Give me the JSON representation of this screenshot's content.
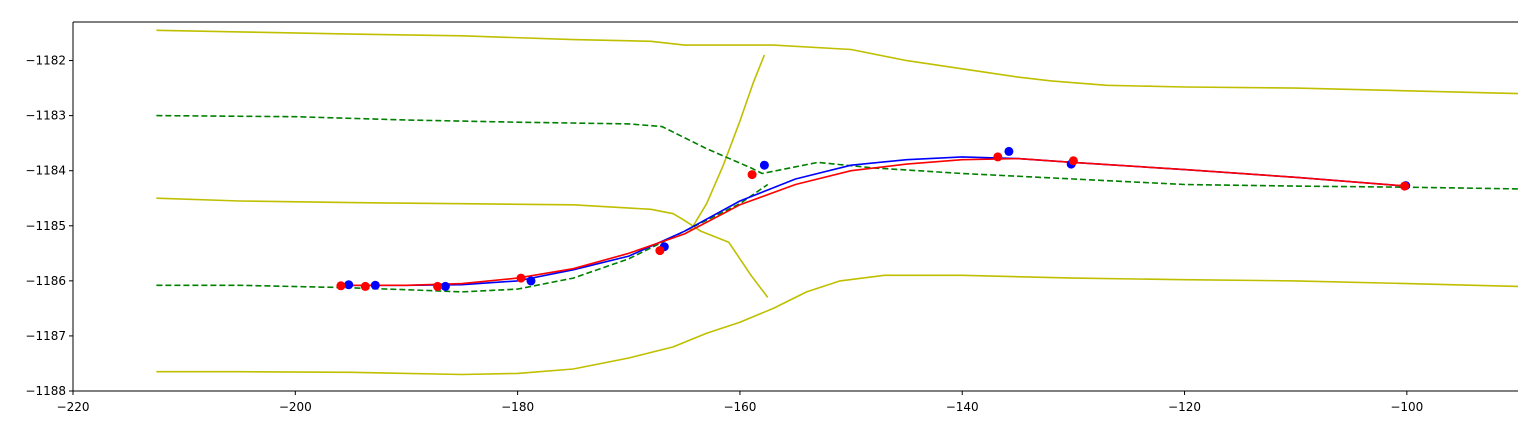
{
  "chart_data": {
    "type": "line",
    "title": "",
    "xlabel": "",
    "ylabel": "",
    "xlim": [
      -220,
      -90
    ],
    "ylim": [
      -1188,
      -1181.3
    ],
    "x_ticks": [
      "−220",
      "−200",
      "−180",
      "−160",
      "−140",
      "−120",
      "−100"
    ],
    "y_ticks": [
      "−1188",
      "−1187",
      "−1186",
      "−1185",
      "−1184",
      "−1183",
      "−1182"
    ],
    "grid": false,
    "legend": "none",
    "series": [
      {
        "color": "#bfbf00",
        "style": "solid",
        "x": [
          -212.5,
          -205,
          -195,
          -185,
          -175,
          -168,
          -165,
          -157,
          -150,
          -145,
          -140,
          -135,
          -132,
          -127,
          -120,
          -110,
          -100,
          -90
        ],
        "y": [
          -1181.45,
          -1181.48,
          -1181.52,
          -1181.55,
          -1181.62,
          -1181.65,
          -1181.72,
          -1181.72,
          -1181.8,
          -1182.0,
          -1182.15,
          -1182.3,
          -1182.37,
          -1182.45,
          -1182.48,
          -1182.5,
          -1182.55,
          -1182.6
        ]
      },
      {
        "color": "#bfbf00",
        "style": "solid",
        "x": [
          -212.5,
          -205,
          -195,
          -185,
          -175,
          -168,
          -166,
          -165,
          -163.5,
          -161,
          -159,
          -157.5
        ],
        "y": [
          -1184.5,
          -1184.55,
          -1184.58,
          -1184.6,
          -1184.62,
          -1184.7,
          -1184.78,
          -1184.9,
          -1185.1,
          -1185.3,
          -1185.9,
          -1186.3
        ]
      },
      {
        "color": "#bfbf00",
        "style": "solid",
        "x": [
          -212.5,
          -205,
          -195,
          -185,
          -180,
          -175,
          -170,
          -166,
          -163,
          -160,
          -157,
          -154,
          -151,
          -147,
          -140,
          -130,
          -120,
          -110,
          -100,
          -90
        ],
        "y": [
          -1187.65,
          -1187.65,
          -1187.66,
          -1187.7,
          -1187.68,
          -1187.6,
          -1187.4,
          -1187.2,
          -1186.95,
          -1186.75,
          -1186.5,
          -1186.2,
          -1186.0,
          -1185.9,
          -1185.9,
          -1185.95,
          -1185.98,
          -1186.0,
          -1186.05,
          -1186.1
        ]
      },
      {
        "color": "#bfbf00",
        "style": "solid",
        "x": [
          -164.5,
          -163,
          -161.5,
          -160,
          -158.8,
          -157.8
        ],
        "y": [
          -1185.1,
          -1184.6,
          -1183.9,
          -1183.1,
          -1182.4,
          -1181.9
        ]
      },
      {
        "color": "#008000",
        "style": "dashed",
        "x": [
          -212.5,
          -200,
          -190,
          -180,
          -170,
          -167,
          -163,
          -159,
          -158,
          -153,
          -148,
          -140,
          -130,
          -120,
          -110,
          -100,
          -90
        ],
        "y": [
          -1183.0,
          -1183.02,
          -1183.08,
          -1183.12,
          -1183.15,
          -1183.2,
          -1183.6,
          -1183.95,
          -1184.05,
          -1183.85,
          -1183.95,
          -1184.05,
          -1184.15,
          -1184.25,
          -1184.28,
          -1184.3,
          -1184.33
        ]
      },
      {
        "color": "#008000",
        "style": "dashed",
        "x": [
          -212.5,
          -205,
          -196,
          -190,
          -185,
          -180,
          -175,
          -170,
          -165,
          -160,
          -157.5
        ],
        "y": [
          -1186.08,
          -1186.08,
          -1186.12,
          -1186.16,
          -1186.2,
          -1186.15,
          -1185.95,
          -1185.6,
          -1185.1,
          -1184.6,
          -1184.25
        ]
      },
      {
        "color": "#0000ff",
        "style": "solid",
        "x": [
          -196,
          -190,
          -185,
          -180,
          -175,
          -170,
          -165,
          -160,
          -155,
          -150,
          -145,
          -140,
          -135,
          -130,
          -120,
          -110,
          -100
        ],
        "y": [
          -1186.08,
          -1186.08,
          -1186.07,
          -1186.0,
          -1185.8,
          -1185.55,
          -1185.1,
          -1184.55,
          -1184.15,
          -1183.9,
          -1183.8,
          -1183.75,
          -1183.78,
          -1183.85,
          -1183.98,
          -1184.12,
          -1184.28
        ]
      },
      {
        "color": "#ff0000",
        "style": "solid",
        "x": [
          -196,
          -190,
          -185,
          -180,
          -175,
          -170,
          -165,
          -160,
          -155,
          -150,
          -145,
          -140,
          -135,
          -130,
          -120,
          -110,
          -100
        ],
        "y": [
          -1186.08,
          -1186.08,
          -1186.05,
          -1185.95,
          -1185.78,
          -1185.5,
          -1185.15,
          -1184.62,
          -1184.25,
          -1184.0,
          -1183.88,
          -1183.8,
          -1183.78,
          -1183.85,
          -1183.98,
          -1184.12,
          -1184.28
        ]
      }
    ],
    "points": [
      {
        "color": "#0000ff",
        "x": [
          -195.2,
          -192.8,
          -186.5,
          -178.8,
          -166.8,
          -157.8,
          -135.8,
          -130.2,
          -100.1
        ],
        "y": [
          -1186.07,
          -1186.08,
          -1186.1,
          -1186.0,
          -1185.38,
          -1183.9,
          -1183.65,
          -1183.88,
          -1184.27
        ]
      },
      {
        "color": "#ff0000",
        "x": [
          -195.9,
          -193.7,
          -187.2,
          -179.7,
          -167.2,
          -158.9,
          -136.8,
          -130.0,
          -100.2
        ],
        "y": [
          -1186.09,
          -1186.1,
          -1186.1,
          -1185.95,
          -1185.45,
          -1184.07,
          -1183.75,
          -1183.82,
          -1184.28
        ]
      }
    ]
  }
}
